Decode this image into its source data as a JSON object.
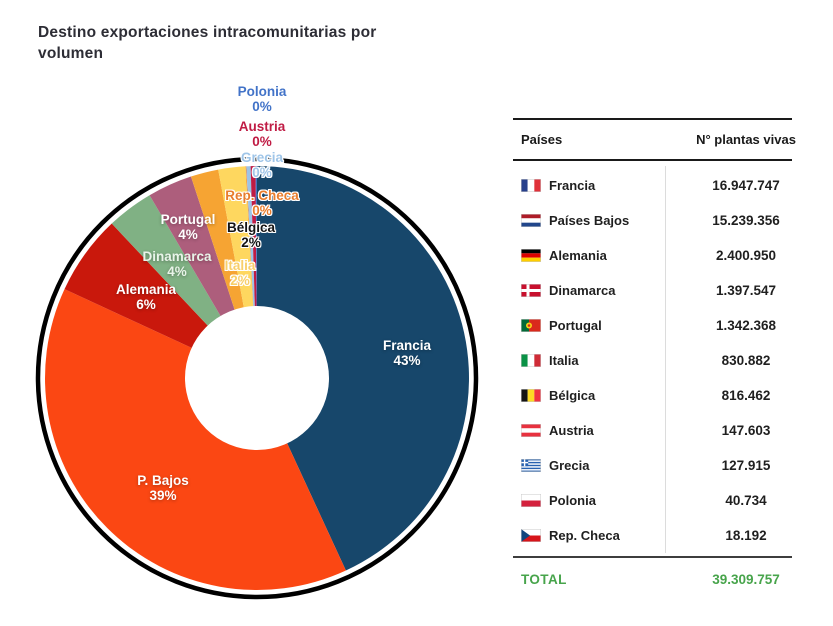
{
  "chart_data": {
    "type": "pie",
    "donut": true,
    "title": "Destino exportaciones intracomunitarias por volumen",
    "legend_position": "none",
    "clockwise_from_top": true,
    "outer_ring_color": "#000000",
    "slices": [
      {
        "label": "Francia",
        "pct_label": "43%",
        "value": 16947747,
        "color": "#17476b",
        "label_color": "#ffffff"
      },
      {
        "label": "P. Bajos",
        "pct_label": "39%",
        "value": 15239356,
        "color": "#fb4713",
        "label_color": "#ffffff"
      },
      {
        "label": "Alemania",
        "pct_label": "6%",
        "value": 2400950,
        "color": "#c9180c",
        "label_color": "#ffffff"
      },
      {
        "label": "Dinamarca",
        "pct_label": "4%",
        "value": 1397547,
        "color": "#80b184",
        "label_color": "#e9f4e9"
      },
      {
        "label": "Portugal",
        "pct_label": "4%",
        "value": 1342368,
        "color": "#ad5e7c",
        "label_color": "#ffffff"
      },
      {
        "label": "Italia",
        "pct_label": "2%",
        "value": 830882,
        "color": "#f6a433",
        "label_color": "#f8cf6b"
      },
      {
        "label": "Bélgica",
        "pct_label": "2%",
        "value": 816462,
        "color": "#fed75f",
        "label_color": "#141414"
      },
      {
        "label": "Rep. Checa",
        "pct_label": "0%",
        "value": 18192,
        "color": "#ed7d31",
        "label_color": "#e87d2d"
      },
      {
        "label": "Grecia",
        "pct_label": "0%",
        "value": 127915,
        "color": "#9dc3e6",
        "label_color": "#9fc5e8"
      },
      {
        "label": "Austria",
        "pct_label": "0%",
        "value": 147603,
        "color": "#c01b44",
        "label_color": "#c01b44"
      },
      {
        "label": "Polonia",
        "pct_label": "0%",
        "value": 40734,
        "color": "#4472c4",
        "label_color": "#4273c8"
      }
    ]
  },
  "table": {
    "col_country": "Países",
    "col_value": "N° plantas vivas",
    "rows": [
      {
        "flag": "fr",
        "country": "Francia",
        "value": "16.947.747"
      },
      {
        "flag": "nl",
        "country": "Países Bajos",
        "value": "15.239.356"
      },
      {
        "flag": "de",
        "country": "Alemania",
        "value": "2.400.950"
      },
      {
        "flag": "dk",
        "country": "Dinamarca",
        "value": "1.397.547"
      },
      {
        "flag": "pt",
        "country": "Portugal",
        "value": "1.342.368"
      },
      {
        "flag": "it",
        "country": "Italia",
        "value": "830.882"
      },
      {
        "flag": "be",
        "country": "Bélgica",
        "value": "816.462"
      },
      {
        "flag": "at",
        "country": "Austria",
        "value": "147.603"
      },
      {
        "flag": "gr",
        "country": "Grecia",
        "value": "127.915"
      },
      {
        "flag": "pl",
        "country": "Polonia",
        "value": "40.734"
      },
      {
        "flag": "cz",
        "country": "Rep. Checa",
        "value": "18.192"
      }
    ],
    "total_label": "TOTAL",
    "total_value": "39.309.757",
    "total_color": "#47a44b",
    "title_color": "#2d2d35"
  }
}
